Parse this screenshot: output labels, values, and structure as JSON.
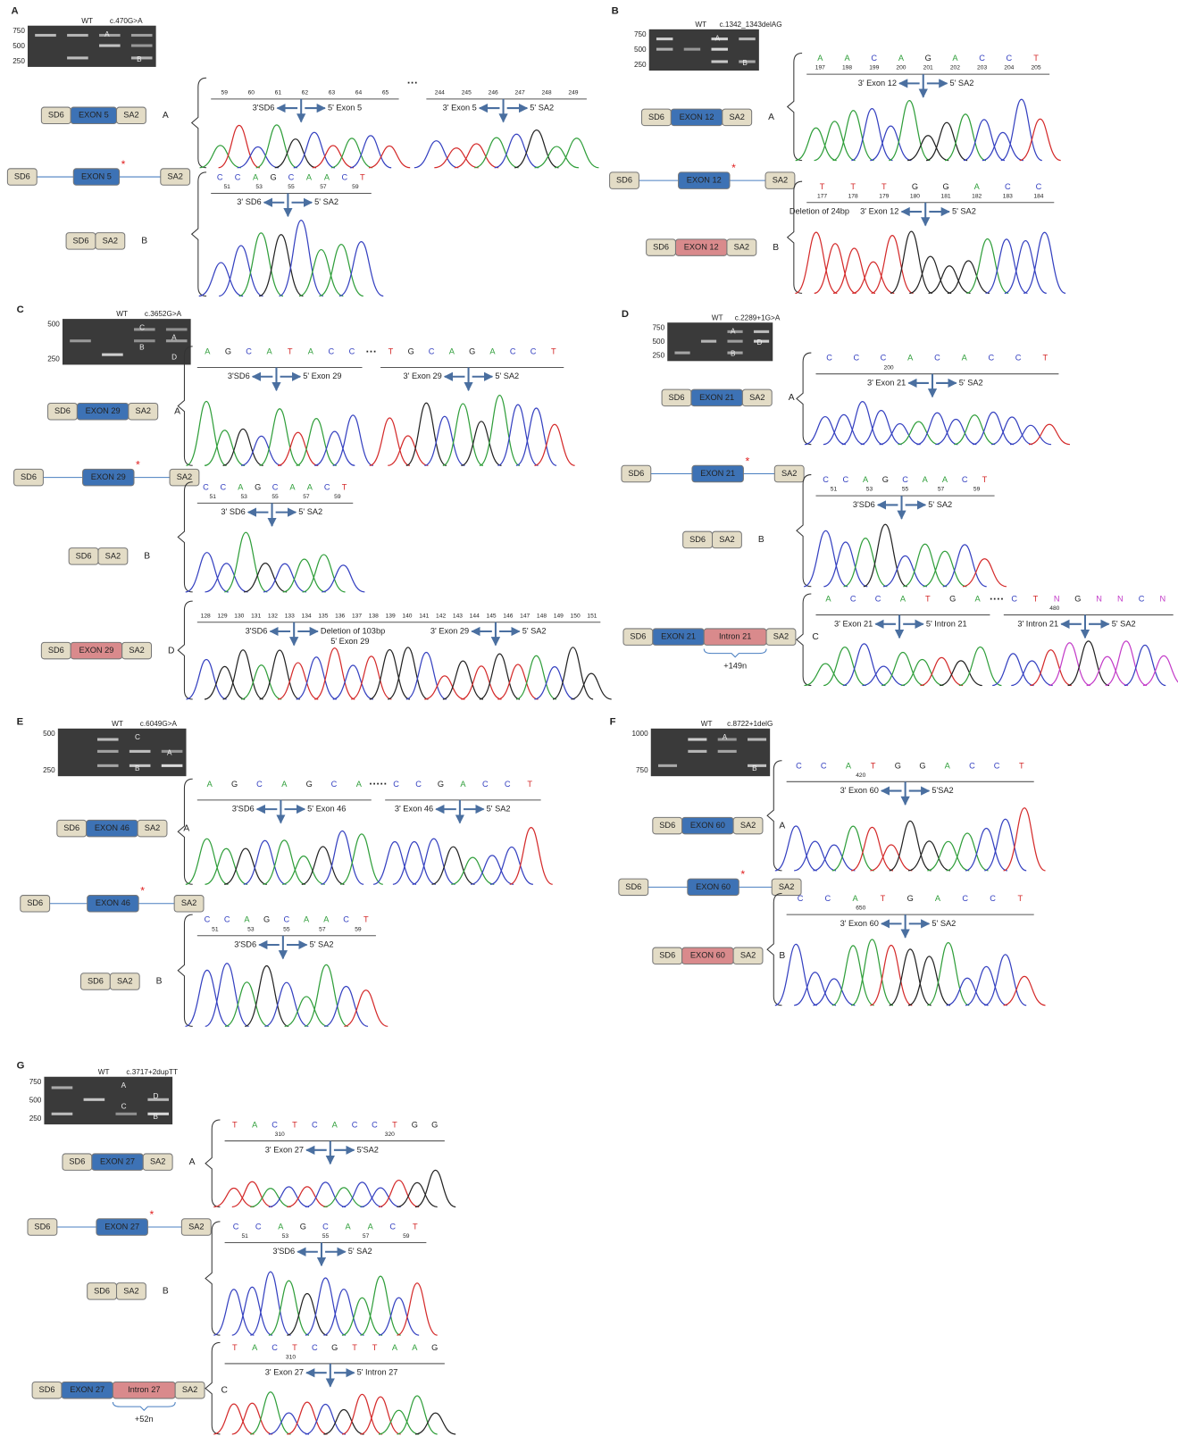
{
  "panels": [
    {
      "letter": "A",
      "gel": {
        "lanes": [
          "WT",
          "c.470G>A"
        ],
        "sizes": [
          "750",
          "500",
          "250"
        ],
        "bands": [
          "A",
          "B"
        ]
      },
      "rows": [
        {
          "construct": [
            "SD6",
            "EXON 5",
            "SA2"
          ],
          "colors": [
            "#e3dcc6",
            "#3d72b5",
            "#e3dcc6"
          ],
          "label": "A",
          "separator": "···",
          "traces": [
            {
              "numbers": [
                "59",
                "60",
                "61",
                "62",
                "63",
                "64",
                "65"
              ],
              "labels": [
                "3'SD6",
                "5' Exon 5"
              ]
            },
            {
              "numbers": [
                "244",
                "245",
                "246",
                "247",
                "248",
                "249"
              ],
              "labels": [
                "3' Exon 5",
                "5' SA2"
              ]
            }
          ]
        },
        {
          "construct": [
            "SD6",
            "EXON 5",
            "SA2"
          ],
          "colors": [
            "#e3dcc6",
            "#3d72b5",
            "#e3dcc6"
          ],
          "kind": "genomic",
          "asterisk": "*"
        },
        {
          "construct": [
            "SD6",
            "SA2"
          ],
          "colors": [
            "#e3dcc6",
            "#e3dcc6"
          ],
          "label": "B",
          "traces": [
            {
              "bases": [
                "C",
                "C",
                "A",
                "G",
                "C",
                "A",
                "A",
                "C",
                "T"
              ],
              "numbers": [
                "51",
                "53",
                "55",
                "57",
                "59"
              ],
              "labels": [
                "3' SD6",
                "5' SA2"
              ]
            }
          ]
        }
      ]
    },
    {
      "letter": "B",
      "gel": {
        "lanes": [
          "WT",
          "c.1342_1343delAG"
        ],
        "sizes": [
          "750",
          "500",
          "250"
        ],
        "bands": [
          "A",
          "B"
        ]
      },
      "rows": [
        {
          "construct": [
            "SD6",
            "EXON 12",
            "SA2"
          ],
          "colors": [
            "#e3dcc6",
            "#3d72b5",
            "#e3dcc6"
          ],
          "label": "A",
          "traces": [
            {
              "bases": [
                "A",
                "A",
                "C",
                "A",
                "G",
                "A",
                "C",
                "C",
                "T"
              ],
              "numbers": [
                "197",
                "198",
                "199",
                "200",
                "201",
                "202",
                "203",
                "204",
                "205"
              ],
              "labels": [
                "3' Exon 12",
                "5' SA2"
              ]
            }
          ]
        },
        {
          "construct": [
            "SD6",
            "EXON 12",
            "SA2"
          ],
          "colors": [
            "#e3dcc6",
            "#3d72b5",
            "#e3dcc6"
          ],
          "kind": "genomic",
          "asterisk": "*"
        },
        {
          "construct": [
            "SD6",
            "EXON 12",
            "SA2"
          ],
          "colors": [
            "#e3dcc6",
            "#d98a8c",
            "#e3dcc6"
          ],
          "label": "B",
          "traces": [
            {
              "bases": [
                "T",
                "T",
                "T",
                "G",
                "G",
                "A",
                "C",
                "C"
              ],
              "numbers": [
                "177",
                "178",
                "179",
                "180",
                "181",
                "182",
                "183",
                "184"
              ],
              "labels": [
                "3' Exon 12",
                "5' SA2"
              ],
              "note": "Deletion of 24bp"
            }
          ]
        }
      ]
    },
    {
      "letter": "C",
      "gel": {
        "lanes": [
          "WT",
          "c.3652G>A"
        ],
        "sizes": [
          "500",
          "250"
        ],
        "bands": [
          "C",
          "A",
          "B",
          "D"
        ]
      },
      "rows": [
        {
          "construct": [
            "SD6",
            "EXON 29",
            "SA2"
          ],
          "colors": [
            "#e3dcc6",
            "#3d72b5",
            "#e3dcc6"
          ],
          "label": "A",
          "separator": "···",
          "traces": [
            {
              "bases": [
                "A",
                "G",
                "C",
                "A",
                "T",
                "A",
                "C",
                "C"
              ],
              "labels": [
                "3'SD6",
                "5' Exon 29"
              ]
            },
            {
              "bases": [
                "T",
                "G",
                "C",
                "A",
                "G",
                "A",
                "C",
                "C",
                "T"
              ],
              "labels": [
                "3' Exon 29",
                "5' SA2"
              ]
            }
          ]
        },
        {
          "construct": [
            "SD6",
            "EXON 29",
            "SA2"
          ],
          "colors": [
            "#e3dcc6",
            "#3d72b5",
            "#e3dcc6"
          ],
          "kind": "genomic",
          "asterisk": "*"
        },
        {
          "construct": [
            "SD6",
            "SA2"
          ],
          "colors": [
            "#e3dcc6",
            "#e3dcc6"
          ],
          "label": "B",
          "traces": [
            {
              "bases": [
                "C",
                "C",
                "A",
                "G",
                "C",
                "A",
                "A",
                "C",
                "T"
              ],
              "numbers": [
                "51",
                "53",
                "55",
                "57",
                "59"
              ],
              "labels": [
                "3' SD6",
                "5' SA2"
              ]
            }
          ]
        },
        {
          "construct": [
            "SD6",
            "EXON 29",
            "SA2"
          ],
          "colors": [
            "#e3dcc6",
            "#d98a8c",
            "#e3dcc6"
          ],
          "label": "D",
          "traces": [
            {
              "numbers": [
                "128",
                "129",
                "130",
                "131",
                "132",
                "133",
                "134",
                "135",
                "136",
                "137",
                "138",
                "139",
                "140",
                "141",
                "142",
                "143",
                "144",
                "145",
                "146",
                "147",
                "148",
                "149",
                "150",
                "151"
              ],
              "labels": [
                "3'SD6",
                "Deletion of 103bp",
                "3' Exon 29",
                "5' SA2"
              ],
              "note": "5' Exon 29"
            }
          ]
        }
      ]
    },
    {
      "letter": "D",
      "gel": {
        "lanes": [
          "WT",
          "c.2289+1G>A"
        ],
        "sizes": [
          "750",
          "500",
          "250"
        ],
        "bands": [
          "A",
          "D",
          "B"
        ]
      },
      "rows": [
        {
          "construct": [
            "SD6",
            "EXON 21",
            "SA2"
          ],
          "colors": [
            "#e3dcc6",
            "#3d72b5",
            "#e3dcc6"
          ],
          "label": "A",
          "traces": [
            {
              "bases": [
                "C",
                "C",
                "C",
                "A",
                "C",
                "A",
                "C",
                "C",
                "T"
              ],
              "numbers": [
                "200"
              ],
              "labels": [
                "3' Exon 21",
                "5' SA2"
              ]
            }
          ]
        },
        {
          "construct": [
            "SD6",
            "EXON 21",
            "SA2"
          ],
          "colors": [
            "#e3dcc6",
            "#3d72b5",
            "#e3dcc6"
          ],
          "kind": "genomic",
          "asterisk": "*"
        },
        {
          "construct": [
            "SD6",
            "SA2"
          ],
          "colors": [
            "#e3dcc6",
            "#e3dcc6"
          ],
          "label": "B",
          "traces": [
            {
              "bases": [
                "C",
                "C",
                "A",
                "G",
                "C",
                "A",
                "A",
                "C",
                "T"
              ],
              "numbers": [
                "51",
                "53",
                "55",
                "57",
                "59"
              ],
              "labels": [
                "3'SD6",
                "5' SA2"
              ]
            }
          ]
        },
        {
          "construct": [
            "SD6",
            "EXON 21",
            "Intron 21",
            "SA2"
          ],
          "colors": [
            "#e3dcc6",
            "#3d72b5",
            "#d98a8c",
            "#e3dcc6"
          ],
          "label": "C",
          "insert": "+149n",
          "separator": "····",
          "traces": [
            {
              "bases": [
                "A",
                "C",
                "C",
                "A",
                "T",
                "G",
                "A"
              ],
              "labels": [
                "3' Exon 21",
                "5' Intron 21"
              ]
            },
            {
              "bases": [
                "C",
                "T",
                "N",
                "G",
                "N",
                "N",
                "C",
                "N"
              ],
              "numbers": [
                "480"
              ],
              "labels": [
                "3' Intron 21",
                "5' SA2"
              ]
            }
          ]
        }
      ]
    },
    {
      "letter": "E",
      "gel": {
        "lanes": [
          "WT",
          "c.6049G>A"
        ],
        "sizes": [
          "500",
          "250"
        ],
        "bands": [
          "C",
          "A",
          "B"
        ]
      },
      "rows": [
        {
          "construct": [
            "SD6",
            "EXON 46",
            "SA2"
          ],
          "colors": [
            "#e3dcc6",
            "#3d72b5",
            "#e3dcc6"
          ],
          "label": "A",
          "separator": "·····",
          "traces": [
            {
              "bases": [
                "A",
                "G",
                "C",
                "A",
                "G",
                "C",
                "A"
              ],
              "labels": [
                "3'SD6",
                "5' Exon 46"
              ]
            },
            {
              "bases": [
                "C",
                "C",
                "G",
                "A",
                "C",
                "C",
                "T"
              ],
              "labels": [
                "3' Exon 46",
                "5' SA2"
              ]
            }
          ]
        },
        {
          "construct": [
            "SD6",
            "EXON 46",
            "SA2"
          ],
          "colors": [
            "#e3dcc6",
            "#3d72b5",
            "#e3dcc6"
          ],
          "kind": "genomic",
          "asterisk": "*"
        },
        {
          "construct": [
            "SD6",
            "SA2"
          ],
          "colors": [
            "#e3dcc6",
            "#e3dcc6"
          ],
          "label": "B",
          "traces": [
            {
              "bases": [
                "C",
                "C",
                "A",
                "G",
                "C",
                "A",
                "A",
                "C",
                "T"
              ],
              "numbers": [
                "51",
                "53",
                "55",
                "57",
                "59"
              ],
              "labels": [
                "3'SD6",
                "5' SA2"
              ]
            }
          ]
        }
      ]
    },
    {
      "letter": "F",
      "gel": {
        "lanes": [
          "WT",
          "c.8722+1delG"
        ],
        "sizes": [
          "1000",
          "750"
        ],
        "bands": [
          "A",
          "B"
        ]
      },
      "rows": [
        {
          "construct": [
            "SD6",
            "EXON 60",
            "SA2"
          ],
          "colors": [
            "#e3dcc6",
            "#3d72b5",
            "#e3dcc6"
          ],
          "label": "A",
          "traces": [
            {
              "bases": [
                "C",
                "C",
                "A",
                "T",
                "G",
                "G",
                "A",
                "C",
                "C",
                "T"
              ],
              "numbers": [
                "420"
              ],
              "labels": [
                "3' Exon 60",
                "5'SA2"
              ]
            }
          ]
        },
        {
          "construct": [
            "SD6",
            "EXON 60",
            "SA2"
          ],
          "colors": [
            "#e3dcc6",
            "#3d72b5",
            "#e3dcc6"
          ],
          "kind": "genomic",
          "asterisk": "*"
        },
        {
          "construct": [
            "SD6",
            "EXON 60",
            "SA2"
          ],
          "colors": [
            "#e3dcc6",
            "#d98a8c",
            "#e3dcc6"
          ],
          "label": "B",
          "traces": [
            {
              "bases": [
                "C",
                "C",
                "A",
                "T",
                "G",
                "A",
                "C",
                "C",
                "T"
              ],
              "numbers": [
                "650"
              ],
              "labels": [
                "3' Exon 60",
                "5' SA2"
              ]
            }
          ]
        }
      ]
    },
    {
      "letter": "G",
      "gel": {
        "lanes": [
          "WT",
          "c.3717+2dupTT"
        ],
        "sizes": [
          "750",
          "500",
          "250"
        ],
        "bands": [
          "A",
          "D",
          "C",
          "B"
        ]
      },
      "rows": [
        {
          "construct": [
            "SD6",
            "EXON 27",
            "SA2"
          ],
          "colors": [
            "#e3dcc6",
            "#3d72b5",
            "#e3dcc6"
          ],
          "label": "A",
          "traces": [
            {
              "bases": [
                "T",
                "A",
                "C",
                "T",
                "C",
                "A",
                "C",
                "C",
                "T",
                "G",
                "G"
              ],
              "numbers": [
                "310",
                "320"
              ],
              "labels": [
                "3' Exon 27",
                "5'SA2"
              ]
            }
          ]
        },
        {
          "construct": [
            "SD6",
            "EXON 27",
            "SA2"
          ],
          "colors": [
            "#e3dcc6",
            "#3d72b5",
            "#e3dcc6"
          ],
          "kind": "genomic",
          "asterisk": "*"
        },
        {
          "construct": [
            "SD6",
            "SA2"
          ],
          "colors": [
            "#e3dcc6",
            "#e3dcc6"
          ],
          "label": "B",
          "traces": [
            {
              "bases": [
                "C",
                "C",
                "A",
                "G",
                "C",
                "A",
                "A",
                "C",
                "T"
              ],
              "numbers": [
                "51",
                "53",
                "55",
                "57",
                "59"
              ],
              "labels": [
                "3'SD6",
                "5' SA2"
              ]
            }
          ]
        },
        {
          "construct": [
            "SD6",
            "EXON 27",
            "Intron 27",
            "SA2"
          ],
          "colors": [
            "#e3dcc6",
            "#3d72b5",
            "#d98a8c",
            "#e3dcc6"
          ],
          "label": "C",
          "insert": "+52n",
          "traces": [
            {
              "bases": [
                "T",
                "A",
                "C",
                "T",
                "C",
                "G",
                "T",
                "T",
                "A",
                "A",
                "G"
              ],
              "numbers": [
                "310"
              ],
              "labels": [
                "3' Exon 27",
                "5' Intron 27"
              ]
            }
          ]
        }
      ]
    }
  ]
}
